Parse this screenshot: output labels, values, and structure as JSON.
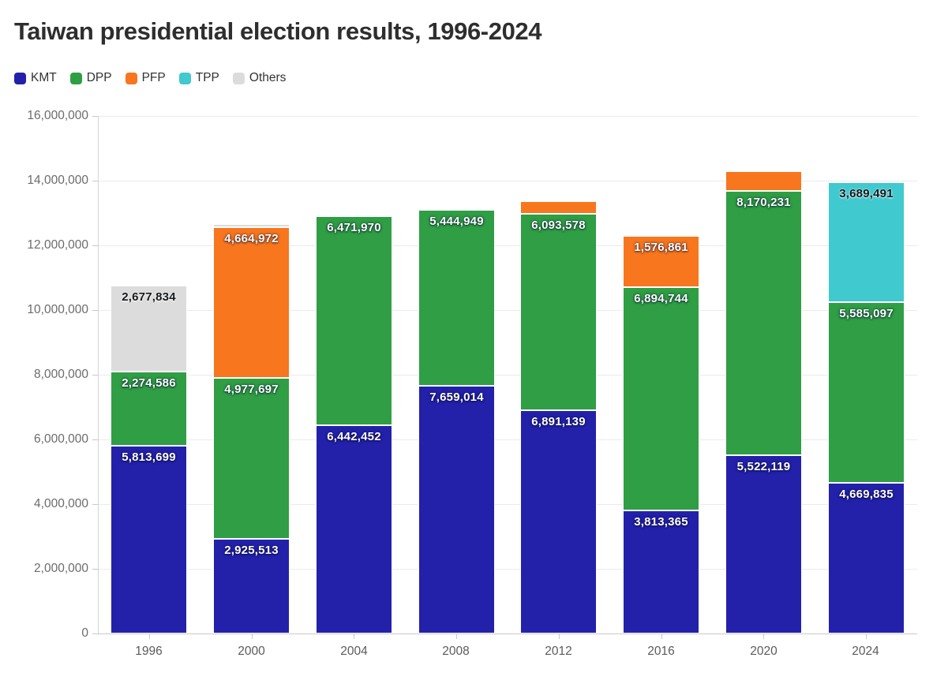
{
  "title": "Taiwan presidential election results, 1996-2024",
  "chart_data": {
    "type": "bar",
    "subtype": "stacked",
    "title": "Taiwan presidential election results, 1996-2024",
    "categories": [
      "1996",
      "2000",
      "2004",
      "2008",
      "2012",
      "2016",
      "2020",
      "2024"
    ],
    "series": [
      {
        "name": "KMT",
        "color": "#2321aa",
        "label_text": "light",
        "values": [
          5813699,
          2925513,
          6442452,
          7659014,
          6891139,
          3813365,
          5522119,
          4669835
        ]
      },
      {
        "name": "DPP",
        "color": "#2f9e44",
        "label_text": "light",
        "values": [
          2274586,
          4977697,
          6471970,
          5444949,
          6093578,
          6894744,
          8170231,
          5585097
        ]
      },
      {
        "name": "PFP",
        "color": "#f8761d",
        "label_text": "light",
        "values": [
          0,
          4664972,
          0,
          0,
          370000,
          1576861,
          609000,
          0
        ]
      },
      {
        "name": "TPP",
        "color": "#40c9cf",
        "label_text": "dark",
        "values": [
          0,
          0,
          0,
          0,
          0,
          0,
          0,
          3689491
        ]
      },
      {
        "name": "Others",
        "color": "#dcdcdc",
        "label_text": "dark",
        "values": [
          2677834,
          96000,
          0,
          0,
          0,
          0,
          0,
          0
        ]
      }
    ],
    "visible_value_labels": [
      "5,813,699",
      "2,274,586",
      "2,677,834",
      "2,925,513",
      "4,977,697",
      "4,664,972",
      "6,442,452",
      "6,471,970",
      "7,659,014",
      "5,444,949",
      "6,891,139",
      "6,093,578",
      "3,813,365",
      "6,894,744",
      "1,576,861",
      "5,522,119",
      "8,170,231",
      "4,669,835",
      "5,585,097",
      "3,689,491"
    ],
    "value_label_min": 1000000,
    "ylim": [
      0,
      16000000
    ],
    "ytick_step": 2000000,
    "ytick_labels": [
      "0",
      "2,000,000",
      "4,000,000",
      "6,000,000",
      "8,000,000",
      "10,000,000",
      "12,000,000",
      "14,000,000",
      "16,000,000"
    ],
    "grid": true,
    "legend_position": "top-left"
  },
  "colors": {
    "background": "#ffffff",
    "title_text": "#2e2e2e",
    "axis_text": "#6b6b6b",
    "gridline": "#ebebeb",
    "axis_line": "#c9c9c9"
  }
}
